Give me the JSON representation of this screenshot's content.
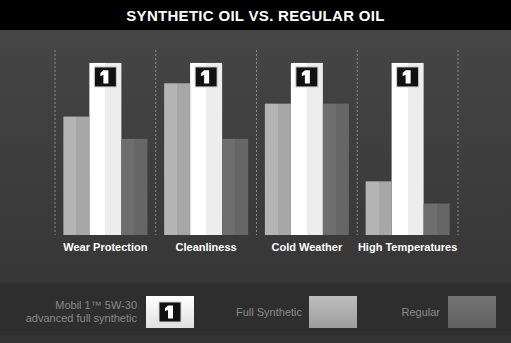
{
  "chart_data": {
    "type": "bar",
    "title": "SYNTHETIC OIL VS. REGULAR OIL",
    "categories": [
      "Wear Protection",
      "Cleanliness",
      "Cold Weather",
      "High Temperatures"
    ],
    "series": [
      {
        "name": "Mobil 1™ 5W-30 advanced full synthetic",
        "color": "#ffffff",
        "values": [
          93,
          93,
          93,
          93
        ]
      },
      {
        "name": "Full Synthetic",
        "color": "#b4b4b4",
        "values": [
          64,
          82,
          71,
          29
        ]
      },
      {
        "name": "Regular",
        "color": "#6e6e6e",
        "values": [
          52,
          52,
          71,
          17
        ]
      }
    ],
    "ylim": [
      0,
      100
    ],
    "grid": false,
    "legend": "bottom",
    "tick_labels": "x"
  }
}
